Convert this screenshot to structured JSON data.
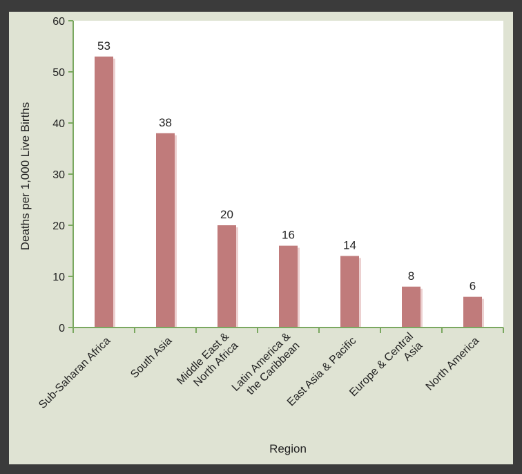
{
  "chart_data": {
    "type": "bar",
    "categories": [
      [
        "Sub-Saharan Africa"
      ],
      [
        "South Asia"
      ],
      [
        "Middle East &",
        "North Africa"
      ],
      [
        "Latin America &",
        "the Caribbean"
      ],
      [
        "East Asia & Pacific"
      ],
      [
        "Europe & Central",
        "Asia"
      ],
      [
        "North America"
      ]
    ],
    "values": [
      53,
      38,
      20,
      16,
      14,
      8,
      6
    ],
    "xlabel": "Region",
    "ylabel": "Deaths per 1,000 Live Births",
    "ylim": [
      0,
      60
    ],
    "yticks": [
      0,
      10,
      20,
      30,
      40,
      50,
      60
    ],
    "data_labels": true,
    "legend": "none",
    "grid": false,
    "colors": {
      "bar": "#c07b7b",
      "bar_shadow": "#ecd0d0",
      "axis": "#7aa860",
      "plot_bg": "#ffffff",
      "frame_bg": "#dfe3d3",
      "outer_bg": "#3b3b3b"
    }
  }
}
